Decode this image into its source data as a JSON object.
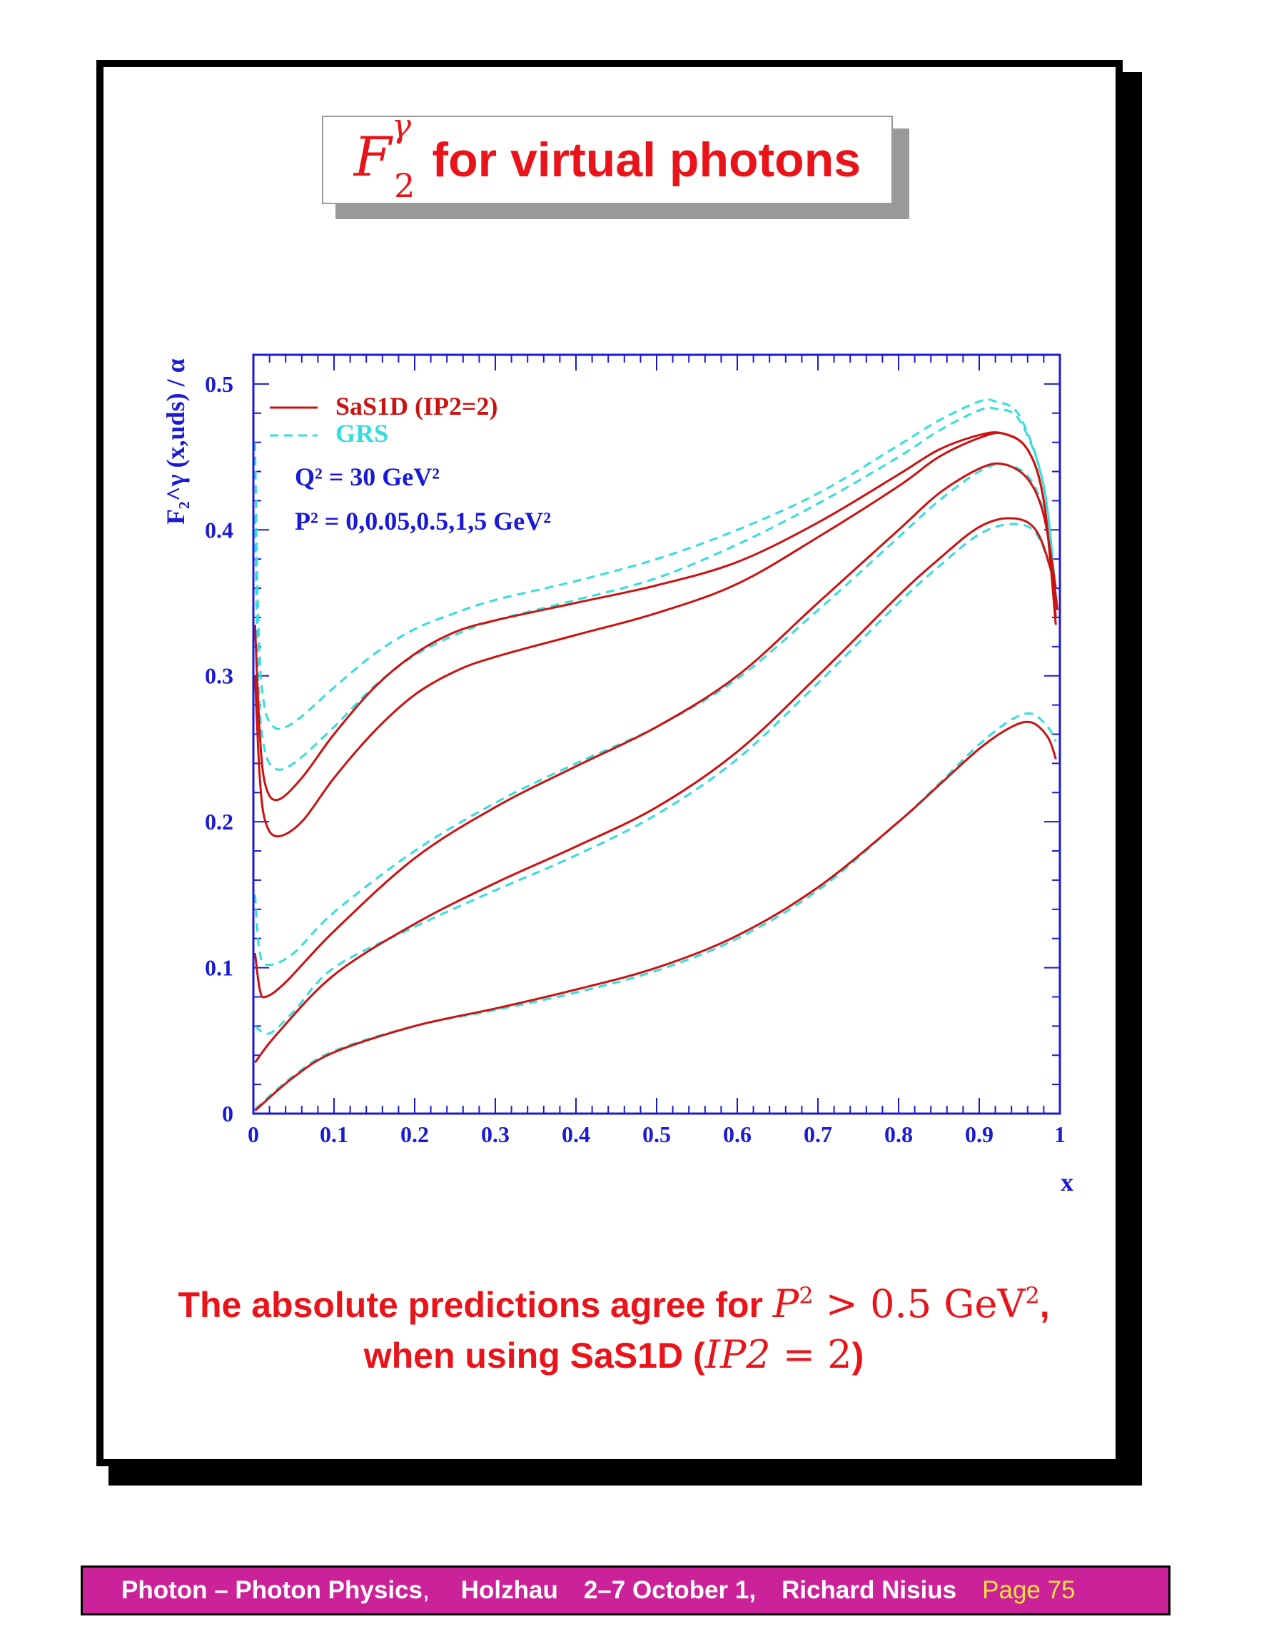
{
  "slide": {
    "title_math_base": "F",
    "title_math_sup": "γ",
    "title_math_sub": "2",
    "title_text": "for virtual photons",
    "caption_line1_text": "The absolute predictions agree for ",
    "caption_line1_math_P": "P",
    "caption_line1_math_sup": "2",
    "caption_line1_math_rest": " > 0.5 GeV",
    "caption_line1_math_sup2": "2",
    "caption_line1_end": ",",
    "caption_line2_text": "when using SaS1D (",
    "caption_line2_math": "IP2",
    "caption_line2_math_rest": " = 2",
    "caption_line2_end": ")",
    "footer": {
      "part1": "Photon – Photon Physics",
      "part1_comma": ",",
      "part2": "Holzhau",
      "part3": "2–7 October 1,",
      "part4": "Richard Nisius",
      "page": "Page 75"
    }
  },
  "colors": {
    "sas": "#cc1111",
    "grs": "#33dddd",
    "axis": "#1a1ad6",
    "title": "#e8141a",
    "footer_bg": "#cc2299",
    "page_label": "#f0e040"
  },
  "chart_data": {
    "type": "line",
    "xlabel": "x",
    "ylabel": "F₂^γ (x,uds) / α",
    "xlim": [
      0,
      1
    ],
    "ylim": [
      0,
      0.52
    ],
    "x_ticks": [
      "0",
      "0.1",
      "0.2",
      "0.3",
      "0.4",
      "0.5",
      "0.6",
      "0.7",
      "0.8",
      "0.9",
      "1"
    ],
    "y_ticks": [
      "0",
      "0.1",
      "0.2",
      "0.3",
      "0.4",
      "0.5"
    ],
    "legend": [
      {
        "label": "SaS1D (IP2=2)",
        "style": "solid",
        "color": "#cc1111"
      },
      {
        "label": "GRS",
        "style": "dashed",
        "color": "#33dddd"
      }
    ],
    "annotation_Q2": "Q² = 30 GeV²",
    "annotation_P2": "P² = 0,0.05,0.5,1,5 GeV²",
    "series": [
      {
        "group": "SaS1D",
        "P2": "0",
        "points": [
          [
            0.002,
            0.335
          ],
          [
            0.008,
            0.26
          ],
          [
            0.015,
            0.225
          ],
          [
            0.03,
            0.215
          ],
          [
            0.06,
            0.23
          ],
          [
            0.1,
            0.26
          ],
          [
            0.15,
            0.292
          ],
          [
            0.2,
            0.315
          ],
          [
            0.25,
            0.33
          ],
          [
            0.3,
            0.338
          ],
          [
            0.4,
            0.35
          ],
          [
            0.5,
            0.362
          ],
          [
            0.6,
            0.378
          ],
          [
            0.7,
            0.405
          ],
          [
            0.8,
            0.438
          ],
          [
            0.85,
            0.455
          ],
          [
            0.9,
            0.465
          ],
          [
            0.93,
            0.466
          ],
          [
            0.96,
            0.455
          ],
          [
            0.98,
            0.42
          ],
          [
            0.995,
            0.335
          ]
        ]
      },
      {
        "group": "SaS1D",
        "P2": "0.05",
        "points": [
          [
            0.002,
            0.3
          ],
          [
            0.008,
            0.23
          ],
          [
            0.015,
            0.2
          ],
          [
            0.03,
            0.19
          ],
          [
            0.06,
            0.2
          ],
          [
            0.1,
            0.23
          ],
          [
            0.15,
            0.262
          ],
          [
            0.2,
            0.287
          ],
          [
            0.25,
            0.303
          ],
          [
            0.3,
            0.313
          ],
          [
            0.4,
            0.328
          ],
          [
            0.5,
            0.343
          ],
          [
            0.6,
            0.363
          ],
          [
            0.7,
            0.395
          ],
          [
            0.8,
            0.43
          ],
          [
            0.85,
            0.45
          ],
          [
            0.9,
            0.463
          ],
          [
            0.93,
            0.466
          ],
          [
            0.96,
            0.455
          ],
          [
            0.98,
            0.42
          ],
          [
            0.995,
            0.34
          ]
        ]
      },
      {
        "group": "SaS1D",
        "P2": "0.5",
        "points": [
          [
            0.002,
            0.11
          ],
          [
            0.008,
            0.085
          ],
          [
            0.015,
            0.08
          ],
          [
            0.04,
            0.09
          ],
          [
            0.1,
            0.125
          ],
          [
            0.2,
            0.175
          ],
          [
            0.3,
            0.21
          ],
          [
            0.4,
            0.238
          ],
          [
            0.5,
            0.265
          ],
          [
            0.6,
            0.3
          ],
          [
            0.7,
            0.35
          ],
          [
            0.8,
            0.4
          ],
          [
            0.85,
            0.425
          ],
          [
            0.9,
            0.442
          ],
          [
            0.93,
            0.445
          ],
          [
            0.96,
            0.435
          ],
          [
            0.98,
            0.41
          ],
          [
            0.995,
            0.36
          ]
        ]
      },
      {
        "group": "SaS1D",
        "P2": "1",
        "points": [
          [
            0.002,
            0.035
          ],
          [
            0.03,
            0.055
          ],
          [
            0.1,
            0.095
          ],
          [
            0.2,
            0.13
          ],
          [
            0.3,
            0.158
          ],
          [
            0.4,
            0.183
          ],
          [
            0.5,
            0.21
          ],
          [
            0.6,
            0.248
          ],
          [
            0.7,
            0.3
          ],
          [
            0.8,
            0.355
          ],
          [
            0.85,
            0.38
          ],
          [
            0.9,
            0.402
          ],
          [
            0.94,
            0.408
          ],
          [
            0.97,
            0.4
          ],
          [
            0.99,
            0.37
          ],
          [
            0.997,
            0.345
          ]
        ]
      },
      {
        "group": "SaS1D",
        "P2": "5",
        "points": [
          [
            0.002,
            0.002
          ],
          [
            0.05,
            0.025
          ],
          [
            0.1,
            0.042
          ],
          [
            0.2,
            0.06
          ],
          [
            0.3,
            0.072
          ],
          [
            0.4,
            0.085
          ],
          [
            0.5,
            0.1
          ],
          [
            0.6,
            0.122
          ],
          [
            0.7,
            0.155
          ],
          [
            0.8,
            0.2
          ],
          [
            0.85,
            0.225
          ],
          [
            0.9,
            0.25
          ],
          [
            0.94,
            0.265
          ],
          [
            0.965,
            0.268
          ],
          [
            0.985,
            0.258
          ],
          [
            0.995,
            0.243
          ]
        ]
      },
      {
        "group": "GRS",
        "P2": "0",
        "points": [
          [
            0.002,
            0.46
          ],
          [
            0.006,
            0.34
          ],
          [
            0.012,
            0.285
          ],
          [
            0.025,
            0.265
          ],
          [
            0.05,
            0.268
          ],
          [
            0.1,
            0.292
          ],
          [
            0.15,
            0.315
          ],
          [
            0.2,
            0.332
          ],
          [
            0.25,
            0.343
          ],
          [
            0.3,
            0.352
          ],
          [
            0.4,
            0.365
          ],
          [
            0.5,
            0.38
          ],
          [
            0.6,
            0.4
          ],
          [
            0.7,
            0.425
          ],
          [
            0.8,
            0.458
          ],
          [
            0.85,
            0.475
          ],
          [
            0.9,
            0.488
          ],
          [
            0.92,
            0.488
          ],
          [
            0.95,
            0.478
          ],
          [
            0.98,
            0.43
          ],
          [
            0.995,
            0.355
          ]
        ]
      },
      {
        "group": "GRS",
        "P2": "0.05",
        "points": [
          [
            0.002,
            0.41
          ],
          [
            0.006,
            0.3
          ],
          [
            0.012,
            0.255
          ],
          [
            0.025,
            0.237
          ],
          [
            0.05,
            0.24
          ],
          [
            0.1,
            0.265
          ],
          [
            0.15,
            0.293
          ],
          [
            0.2,
            0.314
          ],
          [
            0.25,
            0.328
          ],
          [
            0.3,
            0.338
          ],
          [
            0.4,
            0.352
          ],
          [
            0.5,
            0.367
          ],
          [
            0.6,
            0.39
          ],
          [
            0.7,
            0.418
          ],
          [
            0.8,
            0.45
          ],
          [
            0.85,
            0.468
          ],
          [
            0.9,
            0.482
          ],
          [
            0.92,
            0.483
          ],
          [
            0.95,
            0.475
          ],
          [
            0.98,
            0.43
          ],
          [
            0.995,
            0.355
          ]
        ]
      },
      {
        "group": "GRS",
        "P2": "0.5",
        "points": [
          [
            0.002,
            0.15
          ],
          [
            0.008,
            0.11
          ],
          [
            0.02,
            0.102
          ],
          [
            0.05,
            0.11
          ],
          [
            0.1,
            0.138
          ],
          [
            0.2,
            0.18
          ],
          [
            0.3,
            0.213
          ],
          [
            0.4,
            0.24
          ],
          [
            0.5,
            0.265
          ],
          [
            0.6,
            0.298
          ],
          [
            0.7,
            0.345
          ],
          [
            0.8,
            0.395
          ],
          [
            0.85,
            0.42
          ],
          [
            0.9,
            0.44
          ],
          [
            0.93,
            0.445
          ],
          [
            0.96,
            0.437
          ],
          [
            0.98,
            0.412
          ],
          [
            0.995,
            0.36
          ]
        ]
      },
      {
        "group": "GRS",
        "P2": "1",
        "points": [
          [
            0.002,
            0.06
          ],
          [
            0.02,
            0.055
          ],
          [
            0.05,
            0.07
          ],
          [
            0.1,
            0.1
          ],
          [
            0.2,
            0.128
          ],
          [
            0.3,
            0.153
          ],
          [
            0.4,
            0.177
          ],
          [
            0.5,
            0.205
          ],
          [
            0.6,
            0.243
          ],
          [
            0.7,
            0.295
          ],
          [
            0.8,
            0.35
          ],
          [
            0.85,
            0.375
          ],
          [
            0.9,
            0.397
          ],
          [
            0.94,
            0.404
          ],
          [
            0.97,
            0.398
          ],
          [
            0.99,
            0.37
          ],
          [
            0.997,
            0.345
          ]
        ]
      },
      {
        "group": "GRS",
        "P2": "5",
        "points": [
          [
            0.002,
            0.003
          ],
          [
            0.05,
            0.026
          ],
          [
            0.1,
            0.043
          ],
          [
            0.2,
            0.06
          ],
          [
            0.3,
            0.071
          ],
          [
            0.4,
            0.083
          ],
          [
            0.5,
            0.098
          ],
          [
            0.6,
            0.12
          ],
          [
            0.7,
            0.153
          ],
          [
            0.8,
            0.2
          ],
          [
            0.85,
            0.226
          ],
          [
            0.9,
            0.253
          ],
          [
            0.94,
            0.27
          ],
          [
            0.965,
            0.274
          ],
          [
            0.985,
            0.265
          ],
          [
            0.995,
            0.255
          ]
        ]
      }
    ]
  }
}
